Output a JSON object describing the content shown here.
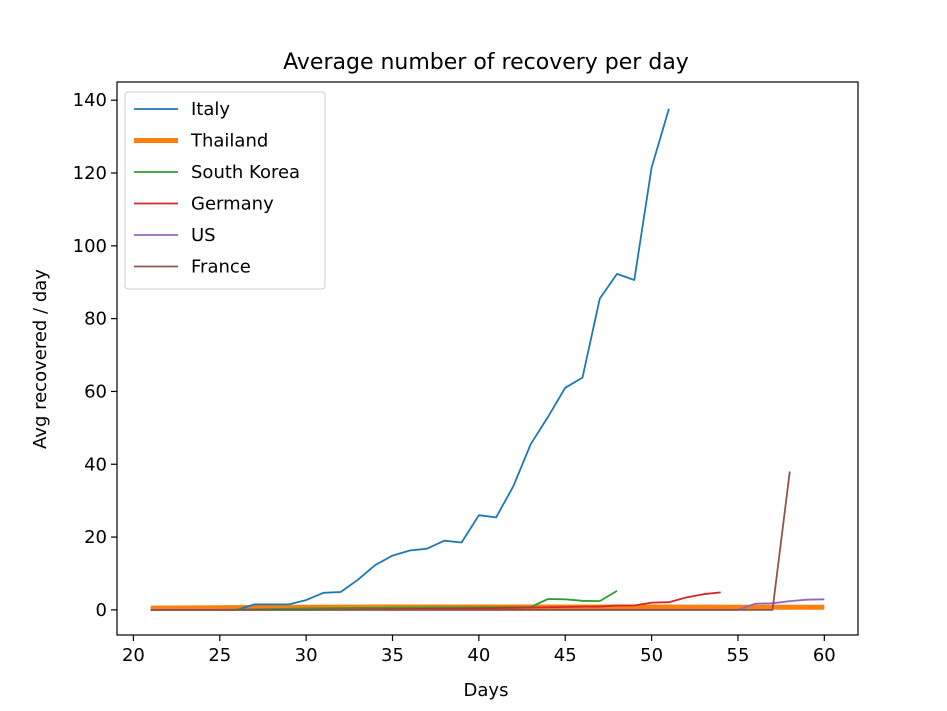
{
  "chart_data": {
    "type": "line",
    "title": "Average number of recovery per day",
    "xlabel": "Days",
    "ylabel": "Avg recovered / day",
    "xlim": [
      19.05,
      61.95
    ],
    "ylim": [
      -6.9,
      145.0
    ],
    "xticks": [
      20,
      25,
      30,
      35,
      40,
      45,
      50,
      55,
      60
    ],
    "yticks": [
      0,
      20,
      40,
      60,
      80,
      100,
      120,
      140
    ],
    "grid": false,
    "legend_position": "top-left",
    "series": [
      {
        "name": "Italy",
        "color": "#1f77b4",
        "width": "thin",
        "x": [
          21,
          22,
          23,
          24,
          25,
          26,
          27,
          28,
          29,
          30,
          31,
          32,
          33,
          34,
          35,
          36,
          37,
          38,
          39,
          40,
          41,
          42,
          43,
          44,
          45,
          46,
          47,
          48,
          49,
          50,
          51
        ],
        "y": [
          0,
          0,
          0,
          0,
          0,
          0,
          1.5,
          1.5,
          1.5,
          2.7,
          4.7,
          4.9,
          8.3,
          12.3,
          14.9,
          16.3,
          16.8,
          19,
          18.5,
          26,
          25.4,
          34,
          45.5,
          53,
          61,
          63.8,
          85.5,
          92.3,
          90.6,
          121.5,
          137.6
        ]
      },
      {
        "name": "Thailand",
        "color": "#ff7f0e",
        "width": "thick",
        "x": [
          21,
          25,
          30,
          35,
          40,
          45,
          50,
          55,
          60
        ],
        "y": [
          0.5,
          0.6,
          0.7,
          0.8,
          0.8,
          0.8,
          0.8,
          0.7,
          0.7
        ]
      },
      {
        "name": "South Korea",
        "color": "#2ca02c",
        "width": "thin",
        "x": [
          21,
          25,
          30,
          35,
          40,
          43,
          44,
          45,
          46,
          47,
          48
        ],
        "y": [
          0,
          0,
          0.4,
          0.6,
          0.7,
          0.8,
          3,
          2.9,
          2.5,
          2.4,
          5.2
        ]
      },
      {
        "name": "Germany",
        "color": "#d62728",
        "width": "thin",
        "x": [
          21,
          25,
          30,
          35,
          40,
          45,
          46,
          47,
          48,
          49,
          50,
          51,
          52,
          53,
          54
        ],
        "y": [
          0,
          0,
          0,
          0.2,
          0.4,
          0.8,
          0.9,
          0.9,
          1.2,
          1.2,
          2,
          2.1,
          3.4,
          4.3,
          4.8
        ]
      },
      {
        "name": "US",
        "color": "#9467bd",
        "width": "thin",
        "x": [
          21,
          30,
          40,
          50,
          55,
          56,
          57,
          58,
          59,
          60
        ],
        "y": [
          0,
          0,
          0,
          0,
          0,
          1.7,
          1.8,
          2.4,
          2.8,
          2.9
        ]
      },
      {
        "name": "France",
        "color": "#8c564b",
        "width": "thin",
        "x": [
          21,
          30,
          40,
          50,
          55,
          56,
          57,
          58
        ],
        "y": [
          0,
          0,
          0,
          0,
          0,
          0,
          0,
          38
        ]
      }
    ]
  }
}
